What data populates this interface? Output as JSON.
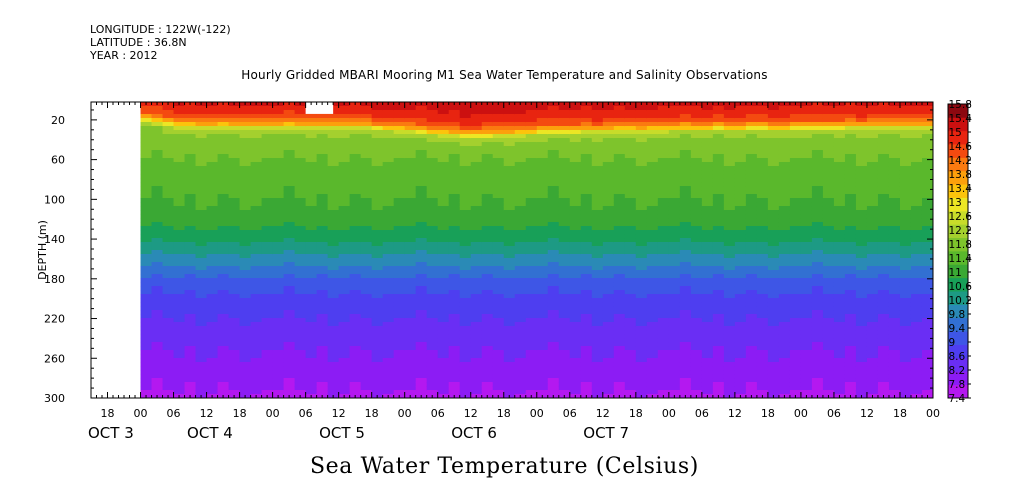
{
  "header": {
    "longitude": "LONGITUDE : 122W(-122)",
    "latitude": "LATITUDE : 36.8N",
    "year": "YEAR : 2012"
  },
  "chart_data": {
    "type": "heatmap",
    "title": "Hourly Gridded MBARI Mooring M1 Sea Water Temperature and Salinity Observations",
    "caption": "Sea Water Temperature (Celsius)",
    "ylabel": "DEPTH (m)",
    "y_inverted": true,
    "ylim": [
      300,
      2
    ],
    "y_ticks": [
      20,
      60,
      100,
      140,
      180,
      220,
      260,
      300
    ],
    "xlim_hours": [
      -9,
      144
    ],
    "data_start_hour": 0,
    "x_ticks": [
      {
        "h": -6,
        "label": "18"
      },
      {
        "h": 0,
        "label": "00"
      },
      {
        "h": 6,
        "label": "06"
      },
      {
        "h": 12,
        "label": "12"
      },
      {
        "h": 18,
        "label": "18"
      },
      {
        "h": 24,
        "label": "00"
      },
      {
        "h": 30,
        "label": "06"
      },
      {
        "h": 36,
        "label": "12"
      },
      {
        "h": 42,
        "label": "18"
      },
      {
        "h": 48,
        "label": "00"
      },
      {
        "h": 54,
        "label": "06"
      },
      {
        "h": 60,
        "label": "12"
      },
      {
        "h": 66,
        "label": "18"
      },
      {
        "h": 72,
        "label": "00"
      },
      {
        "h": 78,
        "label": "06"
      },
      {
        "h": 84,
        "label": "12"
      },
      {
        "h": 90,
        "label": "18"
      },
      {
        "h": 96,
        "label": "00"
      },
      {
        "h": 102,
        "label": "06"
      },
      {
        "h": 108,
        "label": "12"
      },
      {
        "h": 114,
        "label": "18"
      },
      {
        "h": 120,
        "label": "00"
      },
      {
        "h": 126,
        "label": "06"
      },
      {
        "h": 132,
        "label": "12"
      },
      {
        "h": 138,
        "label": "18"
      },
      {
        "h": 144,
        "label": "00"
      }
    ],
    "day_labels": [
      {
        "h": -9,
        "label": "OCT  3"
      },
      {
        "h": 9,
        "label": "OCT  4"
      },
      {
        "h": 33,
        "label": "OCT  5"
      },
      {
        "h": 57,
        "label": "OCT  6"
      },
      {
        "h": 81,
        "label": "OCT  7"
      }
    ],
    "missing_block": {
      "hours": [
        30,
        35
      ],
      "depth": [
        2,
        14
      ]
    },
    "colorbar_levels": [
      7.4,
      7.8,
      8.2,
      8.6,
      9,
      9.4,
      9.8,
      10.2,
      10.6,
      11,
      11.4,
      11.8,
      12.2,
      12.6,
      13,
      13.4,
      13.8,
      14.2,
      14.6,
      15,
      15.4,
      15.8
    ],
    "colorbar_colors": [
      "#b418f0",
      "#8c1cf4",
      "#6a2ef4",
      "#4e3ef0",
      "#3e56e6",
      "#3270d2",
      "#2a8ab6",
      "#1d9a84",
      "#18a058",
      "#3aa834",
      "#5ab82c",
      "#7ec42c",
      "#a4d02e",
      "#c8dc2a",
      "#ece624",
      "#fcc40c",
      "#fca00c",
      "#fa7a10",
      "#f44a10",
      "#e82410",
      "#cc1010",
      "#8c0810"
    ],
    "profile_depths": [
      2,
      10,
      18,
      24,
      30,
      40,
      60,
      80,
      100,
      120,
      140,
      160,
      180,
      200,
      240,
      280,
      300
    ],
    "profile_temps": [
      15.5,
      15.2,
      14.8,
      13.9,
      12.4,
      12.0,
      11.8,
      11.55,
      11.4,
      11.2,
      10.7,
      10.05,
      9.3,
      8.85,
      8.35,
      7.9,
      7.7
    ],
    "hourly_temp_offset": [
      0.0,
      -0.1,
      0.0,
      0.05,
      -0.05,
      0.1,
      0.05,
      -0.05,
      0.0,
      0.1,
      0.05,
      0.0
    ],
    "warm_layer_bottom_by_hour": [
      [
        0,
        14
      ],
      [
        6,
        21
      ],
      [
        18,
        22
      ],
      [
        40,
        22
      ],
      [
        48,
        26
      ],
      [
        60,
        32
      ],
      [
        72,
        28
      ],
      [
        84,
        26
      ],
      [
        96,
        25
      ],
      [
        108,
        24
      ],
      [
        120,
        24
      ],
      [
        132,
        22
      ],
      [
        140,
        22
      ]
    ]
  }
}
